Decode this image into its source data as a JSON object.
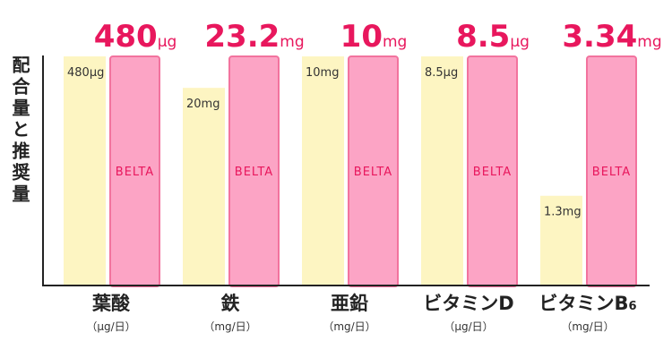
{
  "chart_data": {
    "type": "bar",
    "ylabel": "配合量と推奨量",
    "categories": [
      {
        "name": "葉酸",
        "sub": "",
        "unit_label": "（μg/日）"
      },
      {
        "name": "鉄",
        "sub": "",
        "unit_label": "（mg/日）"
      },
      {
        "name": "亜鉛",
        "sub": "",
        "unit_label": "（mg/日）"
      },
      {
        "name": "ビタミンD",
        "sub": "",
        "unit_label": "（μg/日）"
      },
      {
        "name": "ビタミンB",
        "sub": "6",
        "unit_label": "（mg/日）"
      }
    ],
    "series": [
      {
        "role": "recommended",
        "values": [
          480,
          20,
          10,
          8.5,
          1.3
        ],
        "labels": [
          "480μg",
          "20mg",
          "10mg",
          "8.5μg",
          "1.3mg"
        ]
      },
      {
        "name": "BELTA",
        "values": [
          480,
          23.2,
          10,
          8.5,
          3.34
        ],
        "value_labels": [
          "480",
          "23.2",
          "10",
          "8.5",
          "3.34"
        ],
        "units": [
          "μg",
          "mg",
          "mg",
          "μg",
          "mg"
        ]
      }
    ],
    "colors": {
      "recommended": "#fdf5c2",
      "belta_fill": "#fca4c5",
      "belta_border": "#f2739e",
      "highlight_text": "#e8175d",
      "axis": "#222222"
    }
  }
}
